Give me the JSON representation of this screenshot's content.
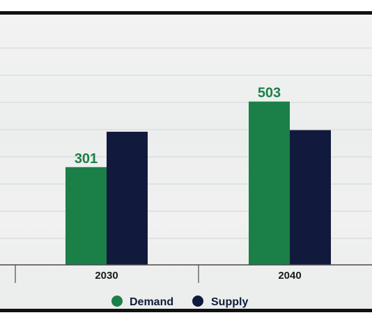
{
  "chart_data": {
    "type": "bar",
    "categories": [
      "2030",
      "2040"
    ],
    "series": [
      {
        "name": "Demand",
        "values": [
          301,
          503
        ],
        "color": "#1b8048",
        "labels": [
          "301",
          "503"
        ]
      },
      {
        "name": "Supply",
        "values": [
          410,
          415
        ],
        "color": "#111a3d"
      }
    ],
    "ylim": [
      0,
      760
    ],
    "grid": true,
    "legend": "bottom-center",
    "label_color": "#1b8048"
  }
}
